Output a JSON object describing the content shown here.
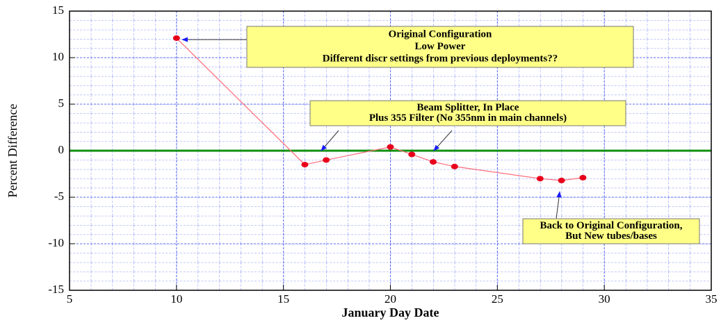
{
  "chart_data": {
    "type": "line",
    "x_label": "January Day Date",
    "y_label": "Percent Difference",
    "x": [
      10,
      16,
      17,
      20,
      21,
      22,
      23,
      27,
      28,
      29
    ],
    "series": [
      {
        "color": "#e8001c",
        "line_color": "#ff6b7a",
        "values": [
          12.1,
          -1.5,
          -1.0,
          0.4,
          -0.4,
          -1.2,
          -1.7,
          -3.0,
          -3.2,
          -2.9
        ]
      }
    ],
    "xlim": [
      5,
      35
    ],
    "xticks": [
      5,
      10,
      15,
      20,
      25,
      30,
      35
    ],
    "ylim": [
      -15,
      15
    ],
    "yticks": [
      -15,
      -10,
      -5,
      0,
      5,
      10,
      15
    ],
    "reference_line": {
      "value": 0,
      "color": "#119011"
    },
    "grid": true,
    "annotations": [
      {
        "lines": [
          "Original Configuration",
          "Low Power",
          "Different discr settings from previous deployments??"
        ]
      },
      {
        "lines": [
          "Beam Splitter, In Place",
          "Plus 355 Filter (No 355nm in main channels)"
        ]
      },
      {
        "lines": [
          "Back to Original Configuration,",
          "But New tubes/bases"
        ]
      }
    ]
  }
}
